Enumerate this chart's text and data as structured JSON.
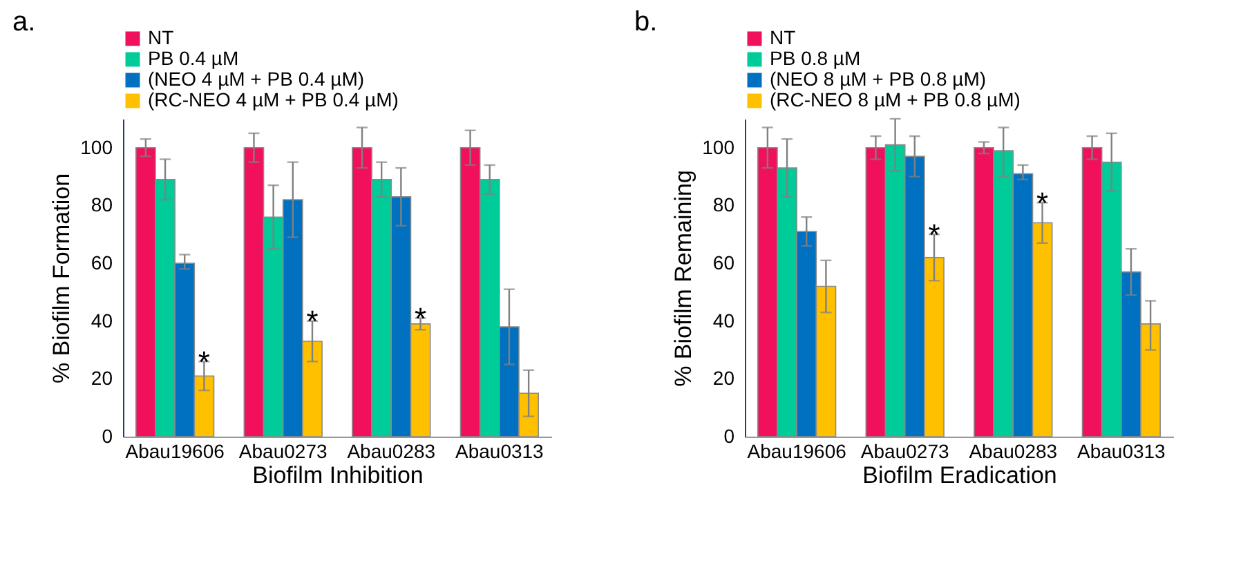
{
  "chart_data": [
    {
      "type": "bar",
      "xlabel": "Biofilm Inhibition",
      "ylabel": "% Biofilm Formation",
      "categories": [
        "Abau19606",
        "Abau0273",
        "Abau0283",
        "Abau0313"
      ],
      "ylim": [
        0,
        110
      ],
      "yticks": [
        0,
        20,
        40,
        60,
        80,
        100
      ],
      "grid": false,
      "legend": "top left",
      "series": [
        {
          "name": "NT",
          "color": "#f0105c",
          "values": [
            100,
            100,
            100,
            100
          ],
          "errors": [
            [
              97,
              103
            ],
            [
              95,
              105
            ],
            [
              93,
              107
            ],
            [
              94,
              106
            ]
          ]
        },
        {
          "name": "PB 0.4 µM",
          "color": "#00cc99",
          "values": [
            89,
            76,
            89,
            89
          ],
          "errors": [
            [
              82,
              96
            ],
            [
              65,
              87
            ],
            [
              83,
              95
            ],
            [
              84,
              94
            ]
          ]
        },
        {
          "name": "(NEO 4 µM + PB 0.4 µM)",
          "color": "#0070c0",
          "values": [
            60,
            82,
            83,
            38
          ],
          "errors": [
            [
              58,
              63
            ],
            [
              69,
              95
            ],
            [
              73,
              93
            ],
            [
              25,
              51
            ]
          ]
        },
        {
          "name": "(RC-NEO 4 µM + PB 0.4 µM)",
          "color": "#ffc000",
          "values": [
            21,
            33,
            39,
            15
          ],
          "errors": [
            [
              16,
              26
            ],
            [
              26,
              40
            ],
            [
              37,
              41
            ],
            [
              7,
              23
            ]
          ]
        }
      ],
      "annotations": [
        "a.",
        {
          "text": "*",
          "x": "Abau19606",
          "y": 28
        },
        {
          "text": "*",
          "x": "Abau0273",
          "y": 42
        },
        {
          "text": "*",
          "x": "Abau0283",
          "y": 43
        }
      ]
    },
    {
      "type": "bar",
      "xlabel": "Biofilm Eradication",
      "ylabel": "% Biofilm Remaining",
      "categories": [
        "Abau19606",
        "Abau0273",
        "Abau0283",
        "Abau0313"
      ],
      "ylim": [
        0,
        110
      ],
      "yticks": [
        0,
        20,
        40,
        60,
        80,
        100
      ],
      "grid": false,
      "legend": "top left",
      "series": [
        {
          "name": "NT",
          "color": "#f0105c",
          "values": [
            100,
            100,
            100,
            100
          ],
          "errors": [
            [
              93,
              107
            ],
            [
              96,
              104
            ],
            [
              98,
              102
            ],
            [
              96,
              104
            ]
          ]
        },
        {
          "name": "PB 0.8 µM",
          "color": "#00cc99",
          "values": [
            93,
            101,
            99,
            95
          ],
          "errors": [
            [
              83,
              103
            ],
            [
              92,
              110
            ],
            [
              90,
              107
            ],
            [
              85,
              105
            ]
          ]
        },
        {
          "name": "(NEO 8 µM + PB 0.8 µM)",
          "color": "#0070c0",
          "values": [
            71,
            97,
            91,
            57
          ],
          "errors": [
            [
              66,
              76
            ],
            [
              90,
              104
            ],
            [
              89,
              94
            ],
            [
              49,
              65
            ]
          ]
        },
        {
          "name": "(RC-NEO 8 µM + PB 0.8 µM)",
          "color": "#ffc000",
          "values": [
            52,
            62,
            74,
            39
          ],
          "errors": [
            [
              43,
              61
            ],
            [
              54,
              70
            ],
            [
              67,
              81
            ],
            [
              30,
              47
            ]
          ]
        }
      ],
      "annotations": [
        "b.",
        {
          "text": "*",
          "x": "Abau0273",
          "y": 72
        },
        {
          "text": "*",
          "x": "Abau0283",
          "y": 83
        }
      ]
    }
  ]
}
